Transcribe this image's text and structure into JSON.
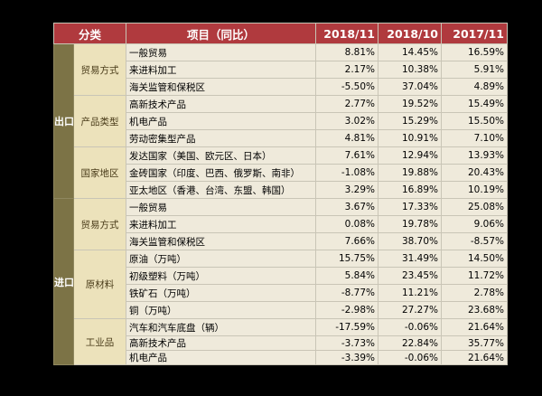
{
  "headers": {
    "category": "分类",
    "item": "项目（同比）",
    "col1": "2018/11",
    "col2": "2018/10",
    "col3": "2017/11"
  },
  "sections": [
    {
      "label": "出口",
      "groups": [
        {
          "label": "贸易方式",
          "rows": [
            {
              "item": "一般贸易",
              "v1": "8.81%",
              "v2": "14.45%",
              "v3": "16.59%"
            },
            {
              "item": "来进料加工",
              "v1": "2.17%",
              "v2": "10.38%",
              "v3": "5.91%"
            },
            {
              "item": "海关监管和保税区",
              "v1": "-5.50%",
              "v2": "37.04%",
              "v3": "4.89%"
            }
          ]
        },
        {
          "label": "产品类型",
          "rows": [
            {
              "item": "高新技术产品",
              "v1": "2.77%",
              "v2": "19.52%",
              "v3": "15.49%"
            },
            {
              "item": "机电产品",
              "v1": "3.02%",
              "v2": "15.29%",
              "v3": "15.50%"
            },
            {
              "item": "劳动密集型产品",
              "v1": "4.81%",
              "v2": "10.91%",
              "v3": "7.10%"
            }
          ]
        },
        {
          "label": "国家地区",
          "rows": [
            {
              "item": "发达国家（美国、欧元区、日本）",
              "v1": "7.61%",
              "v2": "12.94%",
              "v3": "13.93%"
            },
            {
              "item": "金砖国家（印度、巴西、俄罗斯、南非）",
              "v1": "-1.08%",
              "v2": "19.88%",
              "v3": "20.43%"
            },
            {
              "item": "亚太地区（香港、台湾、东盟、韩国）",
              "v1": "3.29%",
              "v2": "16.89%",
              "v3": "10.19%"
            }
          ]
        }
      ]
    },
    {
      "label": "进口",
      "groups": [
        {
          "label": "贸易方式",
          "rows": [
            {
              "item": "一般贸易",
              "v1": "3.67%",
              "v2": "17.33%",
              "v3": "25.08%"
            },
            {
              "item": "来进料加工",
              "v1": "0.08%",
              "v2": "19.78%",
              "v3": "9.06%"
            },
            {
              "item": "海关监管和保税区",
              "v1": "7.66%",
              "v2": "38.70%",
              "v3": "-8.57%"
            }
          ]
        },
        {
          "label": "原材料",
          "rows": [
            {
              "item": "原油（万吨）",
              "v1": "15.75%",
              "v2": "31.49%",
              "v3": "14.50%"
            },
            {
              "item": "初级塑料（万吨）",
              "v1": "5.84%",
              "v2": "23.45%",
              "v3": "11.72%"
            },
            {
              "item": "铁矿石（万吨）",
              "v1": "-8.77%",
              "v2": "11.21%",
              "v3": "2.78%"
            },
            {
              "item": "铜（万吨）",
              "v1": "-2.98%",
              "v2": "27.27%",
              "v3": "23.68%"
            }
          ]
        },
        {
          "label": "工业品",
          "rows": [
            {
              "item": "汽车和汽车底盘（辆）",
              "v1": "-17.59%",
              "v2": "-0.06%",
              "v3": "21.64%"
            },
            {
              "item": "高新技术产品",
              "v1": "-3.73%",
              "v2": "22.84%",
              "v3": "35.77%"
            },
            {
              "item": "机电产品",
              "v1": "-3.39%",
              "v2": "-0.06%",
              "v3": "21.64%"
            }
          ]
        }
      ]
    }
  ]
}
